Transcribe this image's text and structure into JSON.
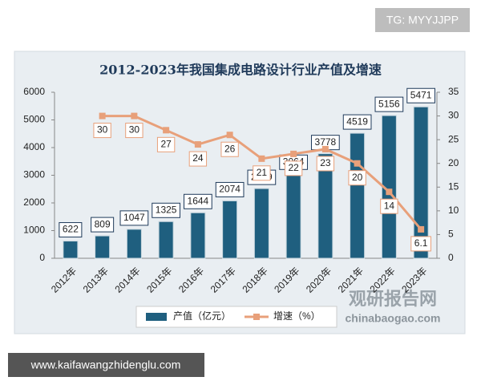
{
  "chart_data": {
    "type": "bar",
    "title": "2012-2023年我国集成电路设计行业产值及增速",
    "categories": [
      "2012年",
      "2013年",
      "2014年",
      "2015年",
      "2016年",
      "2017年",
      "2018年",
      "2019年",
      "2020年",
      "2021年",
      "2022年",
      "2023年"
    ],
    "series": [
      {
        "name": "产值（亿元）",
        "type": "bar",
        "color": "#1f5f7f",
        "values": [
          622,
          809,
          1047,
          1325,
          1644,
          2074,
          2519,
          3064,
          3778,
          4519,
          5156,
          5471
        ]
      },
      {
        "name": "增速（%）",
        "type": "line",
        "axis": "y2",
        "color": "#e8a07a",
        "values": [
          null,
          30,
          30,
          27,
          24,
          26,
          21,
          22,
          23,
          20,
          14,
          6.1
        ]
      }
    ],
    "ylim": [
      0,
      6000
    ],
    "yticks": [
      0,
      1000,
      2000,
      3000,
      4000,
      5000,
      6000
    ],
    "y2lim": [
      0,
      35
    ],
    "y2ticks": [
      0,
      5,
      10,
      15,
      20,
      25,
      30,
      35
    ],
    "grid": false,
    "legend": "bottom"
  },
  "watermarks": {
    "top": "TG: MYYJJPP",
    "bottom": "www.kaifawangzhidenglu.com",
    "brand": "观研报告网",
    "site": "chinabaogao.com"
  }
}
